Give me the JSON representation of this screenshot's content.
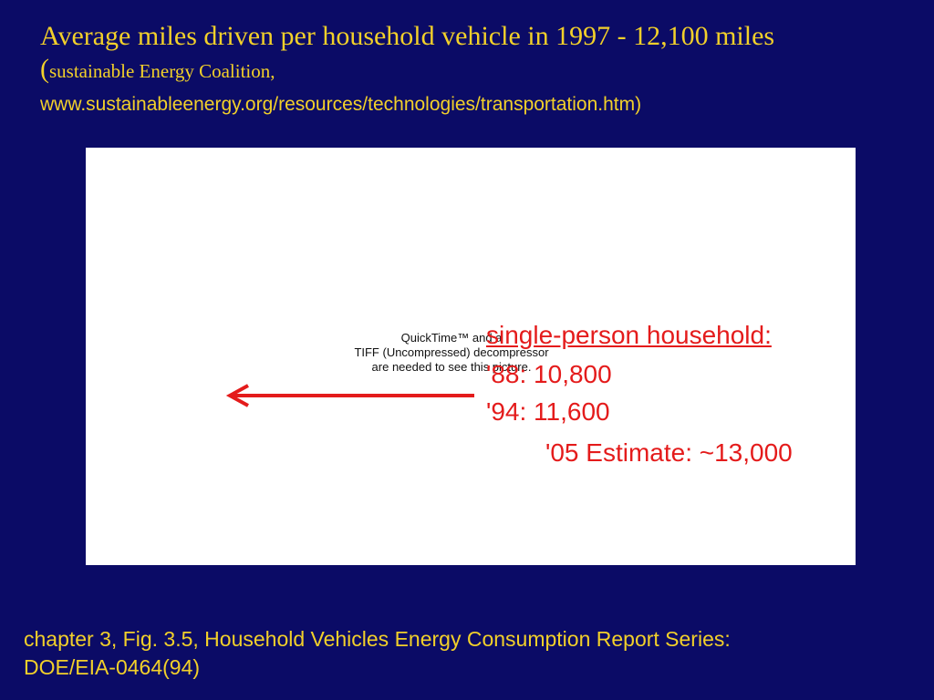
{
  "title": {
    "main": "Average miles driven per household vehicle in 1997 - 12,100 miles",
    "paren_open": "(",
    "source": "sustainable Energy Coalition,",
    "url": "www.sustainableenergy.org/resources/technologies/transportation.htm)"
  },
  "placeholder": {
    "line1": "QuickTime™ and a",
    "line2": "TIFF (Uncompressed) decompressor",
    "line3": "are needed to see this picture."
  },
  "notes": {
    "household_label": "single-person household:",
    "y88": "'88: 10,800",
    "y94": "'94: 11,600",
    "estimate": "'05 Estimate: ~13,000"
  },
  "footer": {
    "line1": "chapter 3, Fig. 3.5, Household Vehicles Energy Consumption Report Series:",
    "line2": "DOE/EIA-0464(94)"
  },
  "colors": {
    "background": "#0b0b66",
    "title_text": "#f2d02a",
    "annotation": "#e41b1b",
    "panel": "#ffffff"
  },
  "icons": {
    "arrow": "left-arrow-icon"
  }
}
